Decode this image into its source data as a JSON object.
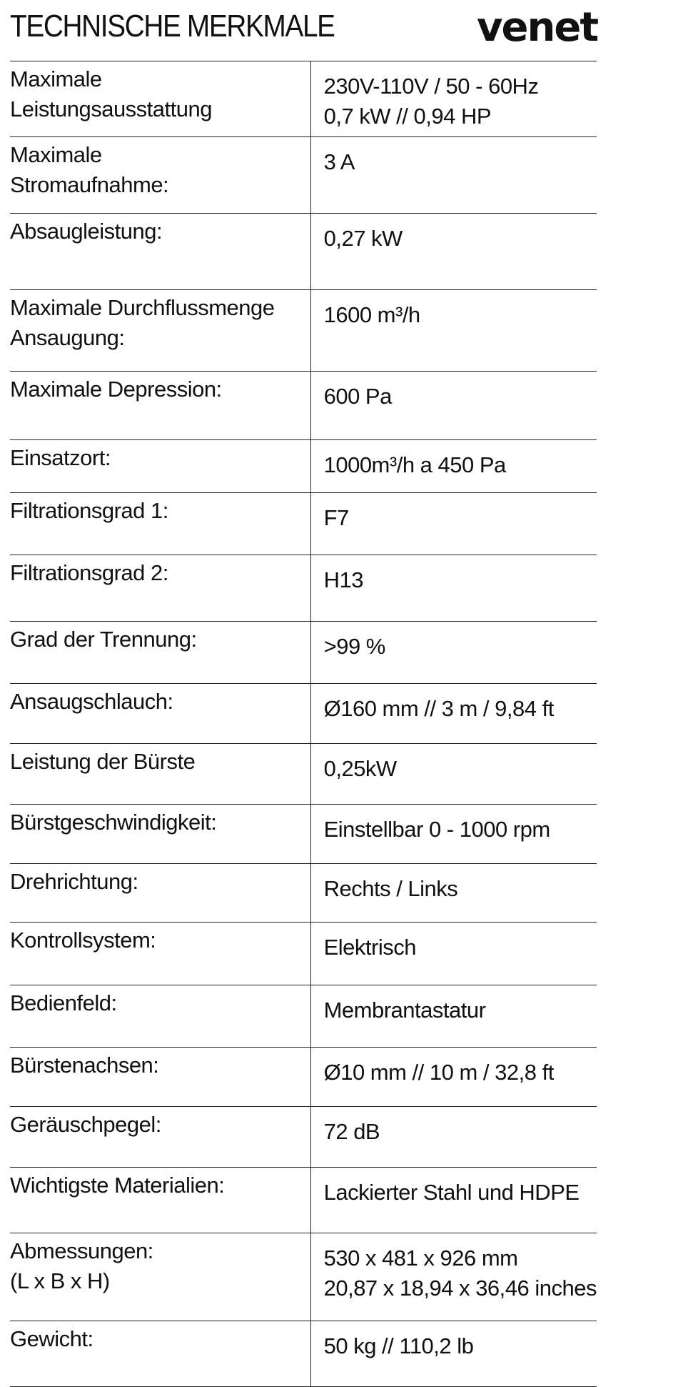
{
  "header": {
    "title": "TECHNISCHE MERKMALE",
    "logo": "venet"
  },
  "rows": [
    {
      "label": [
        "Maximale",
        "Leistungsausstattung"
      ],
      "value": [
        "230V-110V / 50 - 60Hz",
        "0,7 kW // 0,94 HP"
      ]
    },
    {
      "label": [
        "Maximale",
        "Stromaufnahme:"
      ],
      "value": [
        "3 A"
      ]
    },
    {
      "label": [
        "Absaugleistung:"
      ],
      "value": [
        "0,27 kW"
      ]
    },
    {
      "label": [
        "Maximale Durchflussmenge",
        "Ansaugung:"
      ],
      "value": [
        "1600 m³/h"
      ]
    },
    {
      "label": [
        "Maximale Depression:"
      ],
      "value": [
        "600 Pa"
      ]
    },
    {
      "label": [
        "Einsatzort:"
      ],
      "value": [
        "1000m³/h a 450 Pa"
      ]
    },
    {
      "label": [
        "Filtrationsgrad 1:"
      ],
      "value": [
        "F7"
      ]
    },
    {
      "label": [
        "Filtrationsgrad 2:"
      ],
      "value": [
        "H13"
      ]
    },
    {
      "label": [
        "Grad der Trennung:"
      ],
      "value": [
        ">99 %"
      ]
    },
    {
      "label": [
        "Ansaugschlauch:"
      ],
      "value": [
        "Ø160 mm // 3 m / 9,84 ft"
      ]
    },
    {
      "label": [
        "Leistung der Bürste"
      ],
      "value": [
        "0,25kW"
      ]
    },
    {
      "label": [
        "Bürstgeschwindigkeit:"
      ],
      "value": [
        "Einstellbar 0 - 1000 rpm"
      ]
    },
    {
      "label": [
        "Drehrichtung:"
      ],
      "value": [
        "Rechts / Links"
      ]
    },
    {
      "label": [
        "Kontrollsystem:"
      ],
      "value": [
        "Elektrisch"
      ]
    },
    {
      "label": [
        "Bedienfeld:"
      ],
      "value": [
        "Membrantastatur"
      ]
    },
    {
      "label": [
        "Bürstenachsen:"
      ],
      "value": [
        "Ø10 mm // 10 m / 32,8 ft"
      ]
    },
    {
      "label": [
        "Geräuschpegel:"
      ],
      "value": [
        "72 dB"
      ]
    },
    {
      "label": [
        "Wichtigste Materialien:"
      ],
      "value": [
        "Lackierter Stahl und HDPE"
      ]
    },
    {
      "label": [
        "Abmessungen:",
        "(L x B x H)"
      ],
      "value": [
        "530 x 481 x 926 mm",
        "20,87 x 18,94 x 36,46 inches"
      ]
    },
    {
      "label": [
        "Gewicht:"
      ],
      "value": [
        "50 kg // 110,2 lb"
      ]
    }
  ]
}
